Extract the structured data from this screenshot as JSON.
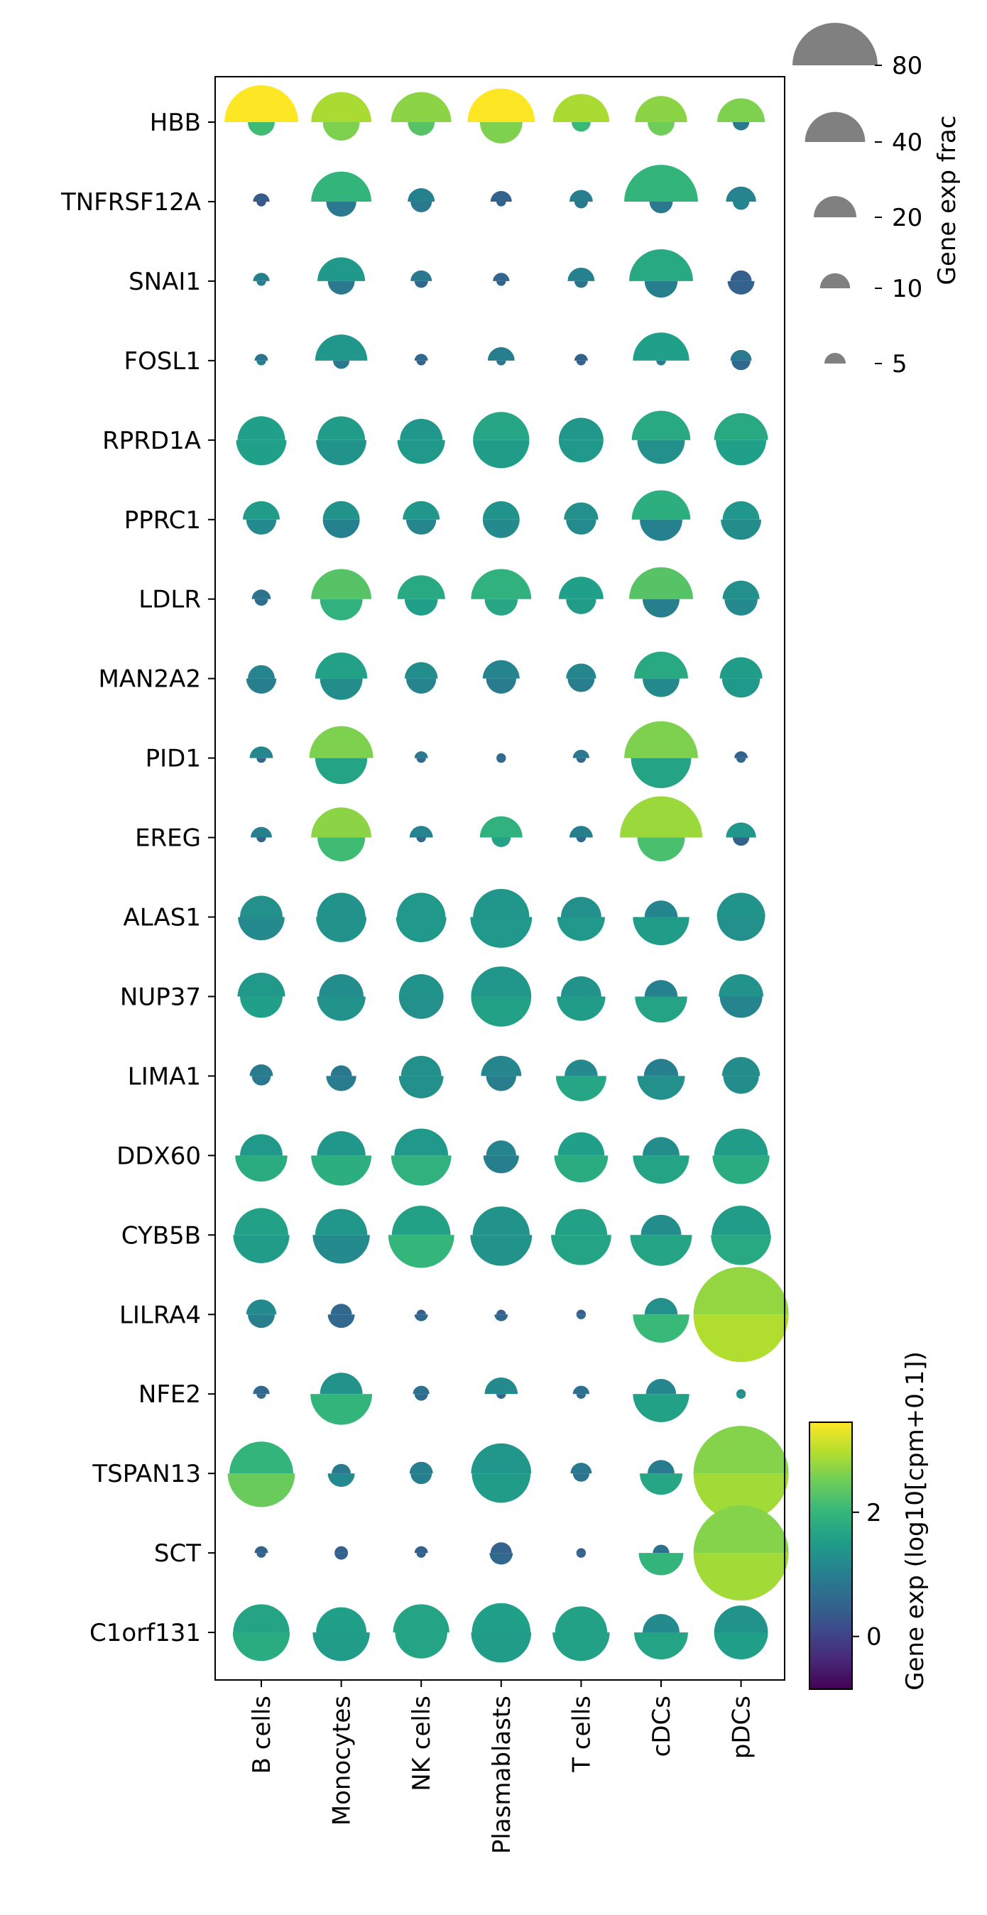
{
  "chart_data": {
    "type": "split-dot",
    "genes": [
      "HBB",
      "TNFRSF12A",
      "SNAI1",
      "FOSL1",
      "RPRD1A",
      "PPRC1",
      "LDLR",
      "MAN2A2",
      "PID1",
      "EREG",
      "ALAS1",
      "NUP37",
      "LIMA1",
      "DDX60",
      "CYB5B",
      "LILRA4",
      "NFE2",
      "TSPAN13",
      "SCT",
      "C1orf131"
    ],
    "cell_types": [
      "B cells",
      "Monocytes",
      "NK cells",
      "Plasmablasts",
      "T cells",
      "cDCs",
      "pDCs"
    ],
    "size_legend": {
      "title": "Gene exp frac",
      "values": [
        80,
        40,
        20,
        10,
        5
      ],
      "labels": [
        "80",
        "40",
        "20",
        "10",
        "5"
      ]
    },
    "colorbar": {
      "label": "Gene exp (log10[cpm+0.1])",
      "range": [
        -0.85,
        3.45
      ],
      "ticks": [
        0,
        2
      ],
      "tick_labels": [
        "0",
        "2"
      ],
      "colormap": "viridis"
    },
    "top": {
      "frac": [
        [
          60,
          40,
          40,
          50,
          35,
          30,
          25
        ],
        [
          3,
          40,
          8,
          5,
          6,
          60,
          10
        ],
        [
          3,
          25,
          5,
          3,
          8,
          45,
          5
        ],
        [
          2,
          30,
          2,
          8,
          2,
          35,
          5
        ],
        [
          25,
          25,
          20,
          35,
          22,
          38,
          32
        ],
        [
          15,
          15,
          15,
          15,
          13,
          38,
          15
        ],
        [
          4,
          40,
          25,
          40,
          22,
          45,
          15
        ],
        [
          8,
          30,
          12,
          15,
          10,
          32,
          20
        ],
        [
          6,
          45,
          2,
          1,
          3,
          60,
          2
        ],
        [
          5,
          40,
          6,
          20,
          6,
          75,
          10
        ],
        [
          20,
          26,
          26,
          35,
          18,
          12,
          26
        ],
        [
          25,
          22,
          22,
          40,
          18,
          12,
          22
        ],
        [
          6,
          5,
          18,
          18,
          12,
          13,
          16
        ],
        [
          20,
          26,
          32,
          10,
          24,
          15,
          32
        ],
        [
          32,
          30,
          38,
          36,
          30,
          18,
          38
        ],
        [
          10,
          5,
          1,
          1,
          1,
          12,
          100
        ],
        [
          3,
          20,
          3,
          12,
          3,
          10,
          1
        ],
        [
          45,
          4,
          6,
          40,
          5,
          8,
          100
        ],
        [
          2,
          2,
          2,
          5,
          1,
          3,
          100
        ],
        [
          35,
          28,
          35,
          38,
          30,
          15,
          32
        ]
      ],
      "exp": [
        [
          3.45,
          2.9,
          2.7,
          3.45,
          2.9,
          2.7,
          2.6
        ],
        [
          0.4,
          1.95,
          1.05,
          0.5,
          1.0,
          1.95,
          1.1
        ],
        [
          1.0,
          1.45,
          0.9,
          0.55,
          1.05,
          1.75,
          0.45
        ],
        [
          0.8,
          1.4,
          0.6,
          1.0,
          0.5,
          1.55,
          0.9
        ],
        [
          1.55,
          1.5,
          1.4,
          1.7,
          1.4,
          1.75,
          1.75
        ],
        [
          1.5,
          1.35,
          1.4,
          1.35,
          1.3,
          1.85,
          1.4
        ],
        [
          0.8,
          2.3,
          1.75,
          1.9,
          1.55,
          2.3,
          1.3
        ],
        [
          1.1,
          1.6,
          1.25,
          1.1,
          1.15,
          1.75,
          1.5
        ],
        [
          1.15,
          2.6,
          0.9,
          0.6,
          0.9,
          2.6,
          0.5
        ],
        [
          1.05,
          2.7,
          1.1,
          1.9,
          1.0,
          2.8,
          1.4
        ],
        [
          1.3,
          1.35,
          1.45,
          1.4,
          1.3,
          1.1,
          1.35
        ],
        [
          1.45,
          1.25,
          1.35,
          1.4,
          1.35,
          1.05,
          1.35
        ],
        [
          0.95,
          0.85,
          1.3,
          1.15,
          1.2,
          1.0,
          1.25
        ],
        [
          1.45,
          1.4,
          1.45,
          1.1,
          1.55,
          1.25,
          1.5
        ],
        [
          1.6,
          1.4,
          1.6,
          1.35,
          1.6,
          1.25,
          1.5
        ],
        [
          1.2,
          0.6,
          0.45,
          0.45,
          0.45,
          1.3,
          2.75
        ],
        [
          0.6,
          1.35,
          0.75,
          1.2,
          0.75,
          1.15,
          1.25
        ],
        [
          1.95,
          0.9,
          1.0,
          1.4,
          0.85,
          0.95,
          2.65
        ],
        [
          0.5,
          0.5,
          0.5,
          0.5,
          0.5,
          0.75,
          2.65
        ],
        [
          1.65,
          1.55,
          1.65,
          1.55,
          1.6,
          1.2,
          1.35
        ]
      ]
    },
    "bottom": {
      "frac": [
        [
          8,
          15,
          8,
          20,
          4,
          8,
          3
        ],
        [
          1,
          10,
          5,
          1,
          2,
          6,
          3
        ],
        [
          1,
          8,
          2,
          1,
          2,
          12,
          8
        ],
        [
          1,
          3,
          1,
          1,
          1,
          1,
          4
        ],
        [
          28,
          28,
          25,
          35,
          22,
          25,
          28
        ],
        [
          10,
          15,
          10,
          15,
          10,
          20,
          18
        ],
        [
          2,
          20,
          12,
          12,
          10,
          15,
          12
        ],
        [
          10,
          20,
          10,
          10,
          8,
          15,
          16
        ],
        [
          1,
          30,
          1,
          1,
          1,
          40,
          1
        ],
        [
          1,
          25,
          1,
          4,
          1,
          25,
          3
        ],
        [
          24,
          28,
          28,
          42,
          25,
          35,
          25
        ],
        [
          20,
          26,
          22,
          40,
          26,
          30,
          20
        ],
        [
          4,
          10,
          22,
          10,
          28,
          25,
          14
        ],
        [
          30,
          40,
          40,
          14,
          32,
          35,
          36
        ],
        [
          35,
          36,
          48,
          42,
          40,
          42,
          40
        ],
        [
          8,
          8,
          2,
          2,
          1,
          35,
          100
        ],
        [
          1,
          42,
          2,
          1,
          1,
          35,
          1
        ],
        [
          50,
          8,
          5,
          38,
          3,
          20,
          100
        ],
        [
          1,
          2,
          1,
          6,
          1,
          22,
          100
        ],
        [
          36,
          36,
          30,
          40,
          36,
          32,
          32
        ]
      ],
      "exp": [
        [
          2.1,
          2.6,
          2.3,
          2.6,
          2.05,
          2.5,
          0.9
        ],
        [
          0.3,
          0.9,
          0.9,
          0.5,
          0.85,
          0.9,
          1.1
        ],
        [
          1.0,
          0.9,
          0.6,
          0.5,
          0.8,
          1.0,
          0.5
        ],
        [
          1.0,
          0.9,
          0.5,
          0.8,
          0.5,
          1.0,
          0.6
        ],
        [
          1.55,
          1.35,
          1.45,
          1.5,
          1.45,
          1.3,
          1.55
        ],
        [
          1.2,
          1.05,
          1.15,
          1.2,
          1.2,
          1.05,
          1.25
        ],
        [
          0.7,
          1.9,
          1.55,
          1.7,
          1.5,
          1.0,
          1.2
        ],
        [
          1.0,
          1.25,
          1.1,
          0.95,
          1.0,
          1.2,
          1.45
        ],
        [
          0.6,
          1.65,
          0.6,
          0.6,
          0.6,
          1.65,
          0.6
        ],
        [
          0.5,
          2.1,
          0.6,
          1.6,
          0.6,
          2.2,
          0.5
        ],
        [
          1.2,
          1.35,
          1.45,
          1.45,
          1.45,
          1.5,
          1.3
        ],
        [
          1.55,
          1.35,
          1.3,
          1.6,
          1.5,
          1.65,
          1.1
        ],
        [
          0.9,
          0.95,
          1.3,
          1.0,
          1.7,
          1.3,
          1.25
        ],
        [
          1.8,
          1.85,
          1.9,
          1.0,
          1.8,
          1.65,
          1.8
        ],
        [
          1.5,
          1.2,
          2.0,
          1.35,
          1.65,
          1.65,
          1.75
        ],
        [
          1.0,
          0.6,
          0.6,
          0.6,
          0.6,
          2.05,
          2.95
        ],
        [
          0.6,
          1.95,
          0.6,
          0.6,
          0.6,
          1.6,
          1.3
        ],
        [
          2.45,
          1.2,
          1.0,
          1.5,
          0.8,
          1.7,
          2.85
        ],
        [
          0.5,
          0.5,
          0.5,
          0.6,
          0.5,
          1.95,
          2.85
        ],
        [
          1.8,
          1.5,
          1.65,
          1.5,
          1.6,
          1.65,
          1.55
        ]
      ]
    }
  }
}
